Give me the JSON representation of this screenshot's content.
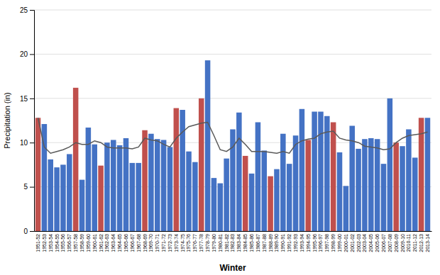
{
  "chart_data": {
    "type": "bar",
    "xlabel": "Winter",
    "ylabel": "Precipitation (in)",
    "categories": [
      "1951-52",
      "1952-53",
      "1953-54",
      "1954-55",
      "1955-56",
      "1956-57",
      "1957-58",
      "1958-59",
      "1959-60",
      "1960-61",
      "1961-62",
      "1962-63",
      "1963-64",
      "1964-65",
      "1965-66",
      "1966-67",
      "1967-68",
      "1968-69",
      "1969-70",
      "1970-71",
      "1971-72",
      "1972-73",
      "1973-74",
      "1974-75",
      "1975-76",
      "1976-77",
      "1977-78",
      "1978-79",
      "1979-80",
      "1980-81",
      "1981-82",
      "1982-83",
      "1983-84",
      "1984-85",
      "1985-86",
      "1986-87",
      "1987-88",
      "1988-89",
      "1989-90",
      "1990-91",
      "1991-92",
      "1992-93",
      "1993-94",
      "1994-95",
      "1995-96",
      "1996-97",
      "1997-98",
      "1998-99",
      "1999-00",
      "2000-01",
      "2001-02",
      "2002-03",
      "2003-04",
      "2004-05",
      "2005-06",
      "2006-07",
      "2007-08",
      "2008-09",
      "2009-10",
      "2010-11",
      "2011-12",
      "2012-13",
      "2013-14"
    ],
    "series": [
      {
        "type": "bar",
        "values": [
          12.8,
          12.1,
          8.1,
          7.2,
          7.5,
          8.7,
          16.2,
          5.8,
          11.7,
          9.8,
          7.4,
          10.0,
          10.3,
          9.7,
          10.5,
          7.7,
          7.7,
          11.4,
          11.0,
          10.4,
          10.3,
          9.5,
          13.9,
          13.7,
          9.0,
          7.8,
          15.0,
          19.3,
          6.0,
          5.4,
          8.2,
          11.5,
          13.4,
          8.5,
          6.5,
          12.3,
          9.1,
          6.2,
          7.0,
          11.0,
          7.6,
          10.8,
          13.8,
          10.3,
          13.5,
          13.5,
          13.0,
          12.3,
          8.9,
          5.1,
          11.9,
          9.3,
          10.4,
          10.5,
          10.4,
          7.6,
          15.0,
          10.0,
          9.6,
          11.5,
          8.3,
          12.8,
          12.8
        ],
        "colors": [
          "#C0504D",
          "#4472C4",
          "#4472C4",
          "#4472C4",
          "#4472C4",
          "#4472C4",
          "#C0504D",
          "#4472C4",
          "#4472C4",
          "#4472C4",
          "#C0504D",
          "#4472C4",
          "#4472C4",
          "#4472C4",
          "#4472C4",
          "#4472C4",
          "#4472C4",
          "#C0504D",
          "#4472C4",
          "#4472C4",
          "#4472C4",
          "#4472C4",
          "#C0504D",
          "#4472C4",
          "#4472C4",
          "#4472C4",
          "#C0504D",
          "#4472C4",
          "#4472C4",
          "#4472C4",
          "#4472C4",
          "#4472C4",
          "#4472C4",
          "#C0504D",
          "#4472C4",
          "#4472C4",
          "#4472C4",
          "#C0504D",
          "#4472C4",
          "#4472C4",
          "#4472C4",
          "#4472C4",
          "#4472C4",
          "#C0504D",
          "#4472C4",
          "#4472C4",
          "#4472C4",
          "#C0504D",
          "#4472C4",
          "#4472C4",
          "#4472C4",
          "#4472C4",
          "#4472C4",
          "#4472C4",
          "#4472C4",
          "#4472C4",
          "#4472C4",
          "#C0504D",
          "#4472C4",
          "#4472C4",
          "#4472C4",
          "#C0504D",
          "#4472C4"
        ]
      },
      {
        "type": "line",
        "color": "#595959",
        "values": [
          12.8,
          9.5,
          8.8,
          9.0,
          9.2,
          9.5,
          10.0,
          9.8,
          9.8,
          10.2,
          10.0,
          9.5,
          9.4,
          9.4,
          9.4,
          9.3,
          9.5,
          10.5,
          10.3,
          10.2,
          9.8,
          9.5,
          10.5,
          11.2,
          11.8,
          12.0,
          12.2,
          12.3,
          10.8,
          9.2,
          9.0,
          9.5,
          10.5,
          9.8,
          9.0,
          9.0,
          9.0,
          8.9,
          8.8,
          9.0,
          8.8,
          9.8,
          10.2,
          10.4,
          10.5,
          11.0,
          11.2,
          11.3,
          10.5,
          10.3,
          10.2,
          10.0,
          9.6,
          9.5,
          9.4,
          9.2,
          9.3,
          10.0,
          10.5,
          10.8,
          10.9,
          11.0,
          11.2
        ]
      }
    ],
    "ylim": [
      0,
      25
    ],
    "yticks": [
      0,
      5,
      10,
      15,
      20,
      25
    ],
    "grid": true
  }
}
